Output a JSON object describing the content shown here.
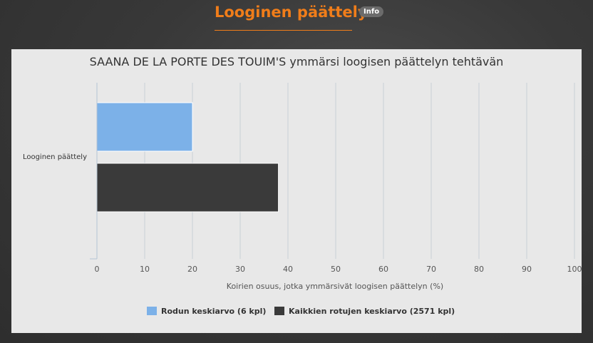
{
  "header": {
    "title": "Looginen päättely",
    "info_label": "Info"
  },
  "colors": {
    "accent": "#f07d1a",
    "breed_series": "#7cb1e8",
    "all_series": "#3a3a3a"
  },
  "chart_data": {
    "type": "bar",
    "orientation": "horizontal",
    "title": "SAANA DE LA PORTE DES TOUIM'S ymmärsi loogisen päättelyn tehtävän",
    "categories": [
      "Looginen päättely"
    ],
    "series": [
      {
        "name": "Rodun keskiarvo (6 kpl)",
        "values": [
          20
        ],
        "color": "#7cb1e8"
      },
      {
        "name": "Kaikkien rotujen keskiarvo (2571 kpl)",
        "values": [
          38
        ],
        "color": "#3a3a3a"
      }
    ],
    "xlabel": "Koirien osuus, jotka ymmärsivät loogisen päättelyn (%)",
    "ylabel": "",
    "xlim": [
      0,
      100
    ],
    "xticks": [
      "0",
      "10",
      "20",
      "30",
      "40",
      "50",
      "60",
      "70",
      "80",
      "90",
      "100"
    ],
    "grid": true,
    "legend_position": "bottom"
  }
}
